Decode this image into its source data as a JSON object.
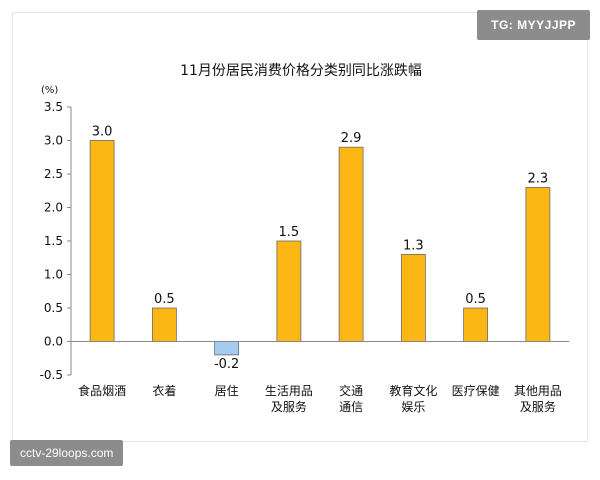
{
  "watermarks": {
    "top": "TG: MYYJJPP",
    "bottom": "cctv-29loops.com"
  },
  "colors": {
    "positive": "#FDB714",
    "negative": "#A6CBF0",
    "bar_outline": "#6b6b6b"
  },
  "chart_data": {
    "type": "bar",
    "title": "11月份居民消费价格分类别同比涨跌幅",
    "ylabel": "(%)",
    "xlabel": "",
    "ylim": [
      -0.5,
      3.5
    ],
    "yticks": [
      "3.5",
      "3.0",
      "2.5",
      "2.0",
      "1.5",
      "1.0",
      "0.5",
      "0.0",
      "-0.5"
    ],
    "ytick_values": [
      3.5,
      3.0,
      2.5,
      2.0,
      1.5,
      1.0,
      0.5,
      0.0,
      -0.5
    ],
    "categories": [
      [
        "食品烟酒"
      ],
      [
        "衣着"
      ],
      [
        "居住"
      ],
      [
        "生活用品",
        "及服务"
      ],
      [
        "交通",
        "通信"
      ],
      [
        "教育文化",
        "娱乐"
      ],
      [
        "医疗保健"
      ],
      [
        "其他用品",
        "及服务"
      ]
    ],
    "values": [
      3.0,
      0.5,
      -0.2,
      1.5,
      2.9,
      1.3,
      0.5,
      2.3
    ],
    "data_labels": [
      "3.0",
      "0.5",
      "-0.2",
      "1.5",
      "2.9",
      "1.3",
      "0.5",
      "2.3"
    ],
    "grid": false,
    "legend": "none"
  }
}
